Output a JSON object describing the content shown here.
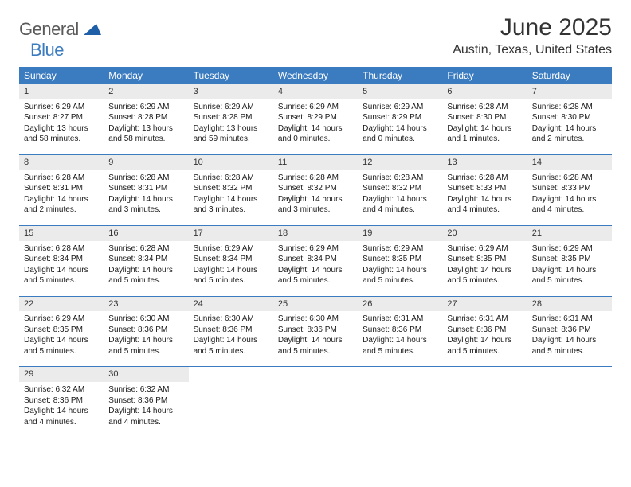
{
  "brand": {
    "word1": "General",
    "word2": "Blue"
  },
  "colors": {
    "header_bg": "#3b7bbf",
    "daynum_bg": "#ebebeb",
    "week_divider": "#3b7bbf",
    "logo_gray": "#5a5a5a",
    "logo_blue": "#3b7bbf"
  },
  "title": "June 2025",
  "location": "Austin, Texas, United States",
  "dow": [
    "Sunday",
    "Monday",
    "Tuesday",
    "Wednesday",
    "Thursday",
    "Friday",
    "Saturday"
  ],
  "weeks": [
    [
      {
        "n": "1",
        "sunrise": "6:29 AM",
        "sunset": "8:27 PM",
        "day_h": "13",
        "day_m": "58"
      },
      {
        "n": "2",
        "sunrise": "6:29 AM",
        "sunset": "8:28 PM",
        "day_h": "13",
        "day_m": "58"
      },
      {
        "n": "3",
        "sunrise": "6:29 AM",
        "sunset": "8:28 PM",
        "day_h": "13",
        "day_m": "59"
      },
      {
        "n": "4",
        "sunrise": "6:29 AM",
        "sunset": "8:29 PM",
        "day_h": "14",
        "day_m": "0"
      },
      {
        "n": "5",
        "sunrise": "6:29 AM",
        "sunset": "8:29 PM",
        "day_h": "14",
        "day_m": "0"
      },
      {
        "n": "6",
        "sunrise": "6:28 AM",
        "sunset": "8:30 PM",
        "day_h": "14",
        "day_m": "1"
      },
      {
        "n": "7",
        "sunrise": "6:28 AM",
        "sunset": "8:30 PM",
        "day_h": "14",
        "day_m": "2"
      }
    ],
    [
      {
        "n": "8",
        "sunrise": "6:28 AM",
        "sunset": "8:31 PM",
        "day_h": "14",
        "day_m": "2"
      },
      {
        "n": "9",
        "sunrise": "6:28 AM",
        "sunset": "8:31 PM",
        "day_h": "14",
        "day_m": "3"
      },
      {
        "n": "10",
        "sunrise": "6:28 AM",
        "sunset": "8:32 PM",
        "day_h": "14",
        "day_m": "3"
      },
      {
        "n": "11",
        "sunrise": "6:28 AM",
        "sunset": "8:32 PM",
        "day_h": "14",
        "day_m": "3"
      },
      {
        "n": "12",
        "sunrise": "6:28 AM",
        "sunset": "8:32 PM",
        "day_h": "14",
        "day_m": "4"
      },
      {
        "n": "13",
        "sunrise": "6:28 AM",
        "sunset": "8:33 PM",
        "day_h": "14",
        "day_m": "4"
      },
      {
        "n": "14",
        "sunrise": "6:28 AM",
        "sunset": "8:33 PM",
        "day_h": "14",
        "day_m": "4"
      }
    ],
    [
      {
        "n": "15",
        "sunrise": "6:28 AM",
        "sunset": "8:34 PM",
        "day_h": "14",
        "day_m": "5"
      },
      {
        "n": "16",
        "sunrise": "6:28 AM",
        "sunset": "8:34 PM",
        "day_h": "14",
        "day_m": "5"
      },
      {
        "n": "17",
        "sunrise": "6:29 AM",
        "sunset": "8:34 PM",
        "day_h": "14",
        "day_m": "5"
      },
      {
        "n": "18",
        "sunrise": "6:29 AM",
        "sunset": "8:34 PM",
        "day_h": "14",
        "day_m": "5"
      },
      {
        "n": "19",
        "sunrise": "6:29 AM",
        "sunset": "8:35 PM",
        "day_h": "14",
        "day_m": "5"
      },
      {
        "n": "20",
        "sunrise": "6:29 AM",
        "sunset": "8:35 PM",
        "day_h": "14",
        "day_m": "5"
      },
      {
        "n": "21",
        "sunrise": "6:29 AM",
        "sunset": "8:35 PM",
        "day_h": "14",
        "day_m": "5"
      }
    ],
    [
      {
        "n": "22",
        "sunrise": "6:29 AM",
        "sunset": "8:35 PM",
        "day_h": "14",
        "day_m": "5"
      },
      {
        "n": "23",
        "sunrise": "6:30 AM",
        "sunset": "8:36 PM",
        "day_h": "14",
        "day_m": "5"
      },
      {
        "n": "24",
        "sunrise": "6:30 AM",
        "sunset": "8:36 PM",
        "day_h": "14",
        "day_m": "5"
      },
      {
        "n": "25",
        "sunrise": "6:30 AM",
        "sunset": "8:36 PM",
        "day_h": "14",
        "day_m": "5"
      },
      {
        "n": "26",
        "sunrise": "6:31 AM",
        "sunset": "8:36 PM",
        "day_h": "14",
        "day_m": "5"
      },
      {
        "n": "27",
        "sunrise": "6:31 AM",
        "sunset": "8:36 PM",
        "day_h": "14",
        "day_m": "5"
      },
      {
        "n": "28",
        "sunrise": "6:31 AM",
        "sunset": "8:36 PM",
        "day_h": "14",
        "day_m": "5"
      }
    ],
    [
      {
        "n": "29",
        "sunrise": "6:32 AM",
        "sunset": "8:36 PM",
        "day_h": "14",
        "day_m": "4"
      },
      {
        "n": "30",
        "sunrise": "6:32 AM",
        "sunset": "8:36 PM",
        "day_h": "14",
        "day_m": "4"
      },
      null,
      null,
      null,
      null,
      null
    ]
  ],
  "labels": {
    "sunrise": "Sunrise:",
    "sunset": "Sunset:",
    "daylight": "Daylight:",
    "hours": "hours",
    "and": "and",
    "minutes": "minutes."
  }
}
